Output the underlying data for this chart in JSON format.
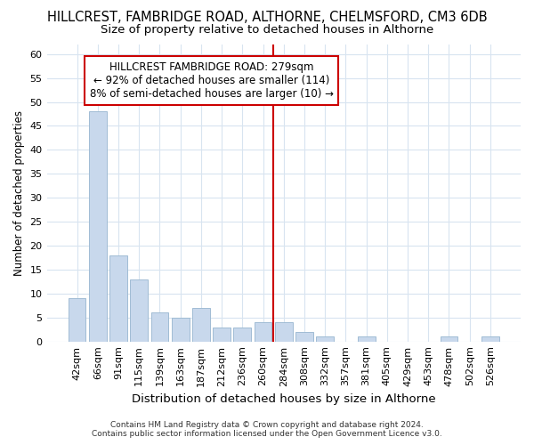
{
  "title": "HILLCREST, FAMBRIDGE ROAD, ALTHORNE, CHELMSFORD, CM3 6DB",
  "subtitle": "Size of property relative to detached houses in Althorne",
  "xlabel": "Distribution of detached houses by size in Althorne",
  "ylabel": "Number of detached properties",
  "bar_color": "#c8d8ec",
  "bar_edge_color": "#a0bcd4",
  "categories": [
    "42sqm",
    "66sqm",
    "91sqm",
    "115sqm",
    "139sqm",
    "163sqm",
    "187sqm",
    "212sqm",
    "236sqm",
    "260sqm",
    "284sqm",
    "308sqm",
    "332sqm",
    "357sqm",
    "381sqm",
    "405sqm",
    "429sqm",
    "453sqm",
    "478sqm",
    "502sqm",
    "526sqm"
  ],
  "values": [
    9,
    48,
    18,
    13,
    6,
    5,
    7,
    3,
    3,
    4,
    4,
    2,
    1,
    0,
    1,
    0,
    0,
    0,
    1,
    0,
    1
  ],
  "ylim": [
    0,
    62
  ],
  "yticks": [
    0,
    5,
    10,
    15,
    20,
    25,
    30,
    35,
    40,
    45,
    50,
    55,
    60
  ],
  "vline_bin_index": 10,
  "annotation_title": "HILLCREST FAMBRIDGE ROAD: 279sqm",
  "annotation_line1": "← 92% of detached houses are smaller (114)",
  "annotation_line2": "8% of semi-detached houses are larger (10) →",
  "vline_color": "#cc0000",
  "annotation_box_edge": "#cc0000",
  "background_color": "#ffffff",
  "footer_line1": "Contains HM Land Registry data © Crown copyright and database right 2024.",
  "footer_line2": "Contains public sector information licensed under the Open Government Licence v3.0.",
  "grid_color": "#d8e4f0",
  "title_fontsize": 10.5,
  "subtitle_fontsize": 9.5,
  "ylabel_fontsize": 8.5,
  "xlabel_fontsize": 9.5,
  "tick_fontsize": 8,
  "footer_fontsize": 6.5,
  "ann_fontsize": 8.5
}
